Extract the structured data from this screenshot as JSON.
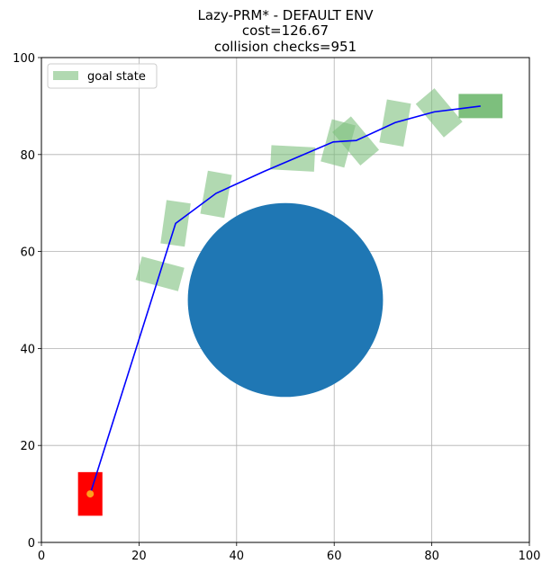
{
  "chart_data": {
    "type": "scatter",
    "title_lines": [
      "Lazy-PRM* - DEFAULT ENV",
      "cost=126.67",
      "collision checks=951"
    ],
    "xlim": [
      0,
      100
    ],
    "ylim": [
      0,
      100
    ],
    "xticks": [
      0,
      20,
      40,
      60,
      80,
      100
    ],
    "yticks": [
      0,
      20,
      40,
      60,
      80,
      100
    ],
    "grid": true,
    "legend": {
      "placement": "top-left",
      "entries": [
        {
          "label": "goal state",
          "color": "#7dbf7d"
        }
      ]
    },
    "obstacle": {
      "shape": "circle",
      "center": [
        50,
        50
      ],
      "radius": 20,
      "color": "#1f77b4"
    },
    "start_state": {
      "center": [
        10,
        10
      ],
      "width": 5,
      "height": 9,
      "angle": 0,
      "color": "#ff0000",
      "marker_color": "#ff9f1c"
    },
    "goal_state": {
      "center": [
        90,
        90
      ],
      "width": 9,
      "height": 5,
      "angle": 0,
      "color": "#7dbf7d"
    },
    "path": {
      "color": "#0000ff",
      "points": [
        [
          10,
          10
        ],
        [
          27.5,
          65.8
        ],
        [
          35.8,
          72
        ],
        [
          45.6,
          76.5
        ],
        [
          59.8,
          82.6
        ],
        [
          64.5,
          82.9
        ],
        [
          72.5,
          86.6
        ],
        [
          80.5,
          88.8
        ],
        [
          90,
          90
        ]
      ]
    },
    "intermediate_states": {
      "color": "#7dbf7d",
      "opacity": 0.6,
      "states": [
        {
          "center": [
            24.3,
            55.4
          ],
          "width": 9,
          "height": 5,
          "angle": -15
        },
        {
          "center": [
            27.5,
            65.8
          ],
          "width": 5,
          "height": 9,
          "angle": -8
        },
        {
          "center": [
            35.8,
            71.8
          ],
          "width": 5,
          "height": 9,
          "angle": -10
        },
        {
          "center": [
            51.5,
            79.2
          ],
          "width": 9,
          "height": 5,
          "angle": -3
        },
        {
          "center": [
            60.8,
            82.3
          ],
          "width": 5,
          "height": 9,
          "angle": -15
        },
        {
          "center": [
            64.4,
            82.8
          ],
          "width": 5,
          "height": 9,
          "angle": 40
        },
        {
          "center": [
            72.5,
            86.5
          ],
          "width": 5,
          "height": 9,
          "angle": -10
        },
        {
          "center": [
            81.5,
            88.6
          ],
          "width": 5,
          "height": 9,
          "angle": 40
        }
      ]
    }
  }
}
